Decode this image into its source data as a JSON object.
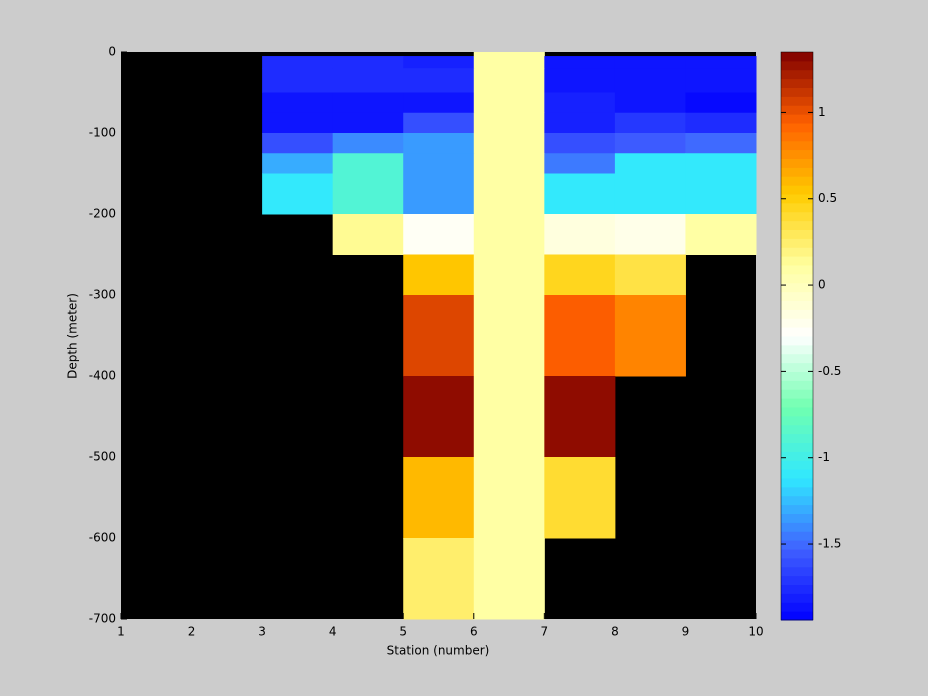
{
  "chart_data": {
    "type": "heatmap",
    "xlabel": "Station (number)",
    "ylabel": "Depth (meter)",
    "x_edges": [
      1,
      2,
      3,
      4,
      5,
      6,
      7,
      8,
      9,
      10
    ],
    "y_edges": [
      0,
      -5,
      -20,
      -50,
      -75,
      -100,
      -125,
      -150,
      -200,
      -250,
      -300,
      -400,
      -500,
      -600,
      -700
    ],
    "z": [
      [
        null,
        null,
        null,
        null,
        null,
        0.1,
        null,
        null,
        null
      ],
      [
        null,
        null,
        -1.75,
        -1.75,
        -1.8,
        0.1,
        -1.85,
        -1.85,
        -1.85
      ],
      [
        null,
        null,
        -1.75,
        -1.75,
        -1.75,
        0.1,
        -1.85,
        -1.85,
        -1.85
      ],
      [
        null,
        null,
        -1.85,
        -1.85,
        -1.85,
        0.1,
        -1.8,
        -1.85,
        -1.9
      ],
      [
        null,
        null,
        -1.85,
        -1.85,
        -1.6,
        0.1,
        -1.8,
        -1.7,
        -1.75
      ],
      [
        null,
        null,
        -1.6,
        -1.4,
        -1.35,
        0.1,
        -1.6,
        -1.55,
        -1.5
      ],
      [
        null,
        null,
        -1.3,
        -0.9,
        -1.35,
        0.1,
        -1.45,
        -1.1,
        -1.1
      ],
      [
        null,
        null,
        -1.1,
        -0.9,
        -1.35,
        0.1,
        -1.1,
        -1.1,
        -1.1
      ],
      [
        null,
        null,
        null,
        0.15,
        -0.25,
        0.1,
        -0.15,
        -0.2,
        0.1
      ],
      [
        null,
        null,
        null,
        null,
        0.55,
        0.1,
        0.45,
        0.35,
        null
      ],
      [
        null,
        null,
        null,
        null,
        1.05,
        0.1,
        0.95,
        0.8,
        null
      ],
      [
        null,
        null,
        null,
        null,
        1.3,
        0.1,
        1.3,
        null,
        null
      ],
      [
        null,
        null,
        null,
        null,
        0.6,
        0.1,
        0.4,
        null,
        null
      ],
      [
        null,
        null,
        null,
        null,
        0.25,
        0.1,
        null,
        null,
        null
      ]
    ],
    "nan_color": "#000000",
    "colormap": [
      "#0000ff",
      "#4060ff",
      "#30e8ff",
      "#70ffb0",
      "#ffffff",
      "#ffffa0",
      "#ffcc00",
      "#ff6000",
      "#800000"
    ],
    "clim": [
      -1.94,
      1.35
    ],
    "cticks": [
      -1.5,
      -1,
      -0.5,
      0,
      0.5,
      1
    ],
    "xlim": [
      1,
      10
    ],
    "ylim": [
      -700,
      0
    ],
    "xticks": [
      1,
      2,
      3,
      4,
      5,
      6,
      7,
      8,
      9,
      10
    ],
    "yticks": [
      0,
      -100,
      -200,
      -300,
      -400,
      -500,
      -600,
      -700
    ]
  }
}
